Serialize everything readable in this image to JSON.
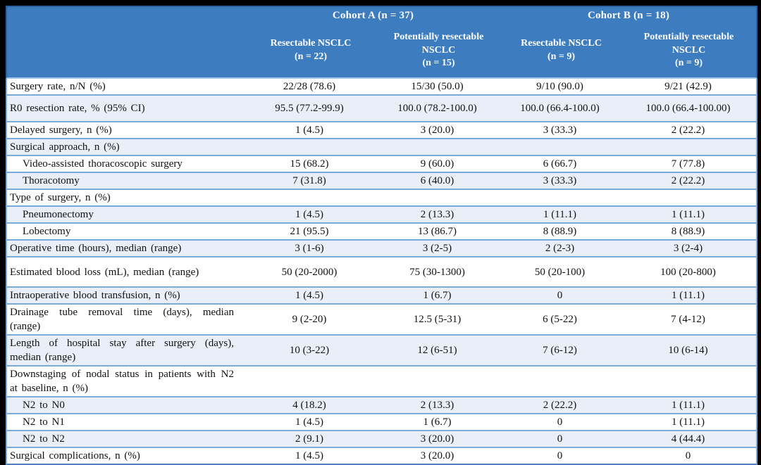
{
  "colors": {
    "header_bg": "#3D7CBF",
    "header_border": "#2B5F9E",
    "row_separator": "#79ABDB",
    "stripe_bg": "#E9EFF8",
    "frame": "#000000",
    "header_text": "#FFFFFF",
    "body_text": "#111111"
  },
  "table": {
    "col_groups": [
      {
        "label": "Cohort A (n = 37)"
      },
      {
        "label": "Cohort B (n = 18)"
      }
    ],
    "columns": [
      {
        "name": "Resectable NSCLC",
        "n": "(n = 22)"
      },
      {
        "name": "Potentially resectable NSCLC",
        "n": "(n = 15)"
      },
      {
        "name": "Resectable NSCLC",
        "n": "(n = 9)"
      },
      {
        "name": "Potentially resectable NSCLC",
        "n": "(n = 9)"
      }
    ],
    "rows": [
      {
        "label": "Surgery rate, n/N (%)",
        "indent": false,
        "tall": false,
        "values": [
          "22/28 (78.6)",
          "15/30 (50.0)",
          "9/10 (90.0)",
          "9/21 (42.9)"
        ]
      },
      {
        "label": "R0 resection rate, % (95% CI)",
        "indent": false,
        "tall": true,
        "values": [
          "95.5 (77.2-99.9)",
          "100.0 (78.2-100.0)",
          "100.0 (66.4-100.0)",
          "100.0 (66.4-100.00)"
        ]
      },
      {
        "label": "Delayed surgery, n (%)",
        "indent": false,
        "tall": false,
        "values": [
          "1 (4.5)",
          "3 (20.0)",
          "3 (33.3)",
          "2 (22.2)"
        ]
      },
      {
        "label": "Surgical approach, n (%)",
        "indent": false,
        "tall": false,
        "values": [
          "",
          "",
          "",
          ""
        ]
      },
      {
        "label": "Video-assisted thoracoscopic surgery",
        "indent": true,
        "tall": false,
        "values": [
          "15 (68.2)",
          "9 (60.0)",
          "6 (66.7)",
          "7 (77.8)"
        ]
      },
      {
        "label": "Thoracotomy",
        "indent": true,
        "tall": false,
        "values": [
          "7 (31.8)",
          "6 (40.0)",
          "3 (33.3)",
          "2 (22.2)"
        ]
      },
      {
        "label": "Type of surgery, n (%)",
        "indent": false,
        "tall": false,
        "values": [
          "",
          "",
          "",
          ""
        ]
      },
      {
        "label": "Pneumonectomy",
        "indent": true,
        "tall": false,
        "values": [
          "1 (4.5)",
          "2 (13.3)",
          "1 (11.1)",
          "1 (11.1)"
        ]
      },
      {
        "label": "Lobectomy",
        "indent": true,
        "tall": false,
        "values": [
          "21 (95.5)",
          "13 (86.7)",
          "8 (88.9)",
          "8 (88.9)"
        ]
      },
      {
        "label": "Operative time (hours), median (range)",
        "indent": false,
        "tall": false,
        "values": [
          "3 (1-6)",
          "3 (2-5)",
          "2 (2-3)",
          "3 (2-4)"
        ]
      },
      {
        "label": "Estimated blood loss (mL), median (range)",
        "indent": false,
        "tall2": true,
        "values": [
          "50 (20-2000)",
          "75 (30-1300)",
          "50 (20-100)",
          "100 (20-800)"
        ]
      },
      {
        "label": "Intraoperative blood transfusion, n (%)",
        "indent": false,
        "tall": false,
        "values": [
          "1 (4.5)",
          "1 (6.7)",
          "0",
          "1 (11.1)"
        ]
      },
      {
        "label": "Drainage tube removal time (days), median (range)",
        "indent": false,
        "tall": false,
        "values": [
          "9 (2-20)",
          "12.5 (5-31)",
          "6 (5-22)",
          "7 (4-12)"
        ]
      },
      {
        "label": "Length of hospital stay after surgery (days), median (range)",
        "indent": false,
        "tall": false,
        "values": [
          "10 (3-22)",
          "12 (6-51)",
          "7 (6-12)",
          "10 (6-14)"
        ]
      },
      {
        "label": "Downstaging of nodal status in patients with N2 at baseline, n (%)",
        "indent": false,
        "tall": false,
        "values": [
          "",
          "",
          "",
          ""
        ]
      },
      {
        "label": "N2 to N0",
        "indent": true,
        "tall": false,
        "values": [
          "4 (18.2)",
          "2 (13.3)",
          "2 (22.2)",
          "1 (11.1)"
        ]
      },
      {
        "label": "N2 to N1",
        "indent": true,
        "tall": false,
        "values": [
          "1 (4.5)",
          "1 (6.7)",
          "0",
          "1 (11.1)"
        ]
      },
      {
        "label": "N2 to N2",
        "indent": true,
        "tall": false,
        "values": [
          "2 (9.1)",
          "3 (20.0)",
          "0",
          "4 (44.4)"
        ]
      },
      {
        "label": "Surgical complications, n (%)",
        "indent": false,
        "tall": false,
        "values": [
          "1 (4.5)",
          "3 (20.0)",
          "0",
          "0"
        ]
      }
    ]
  }
}
